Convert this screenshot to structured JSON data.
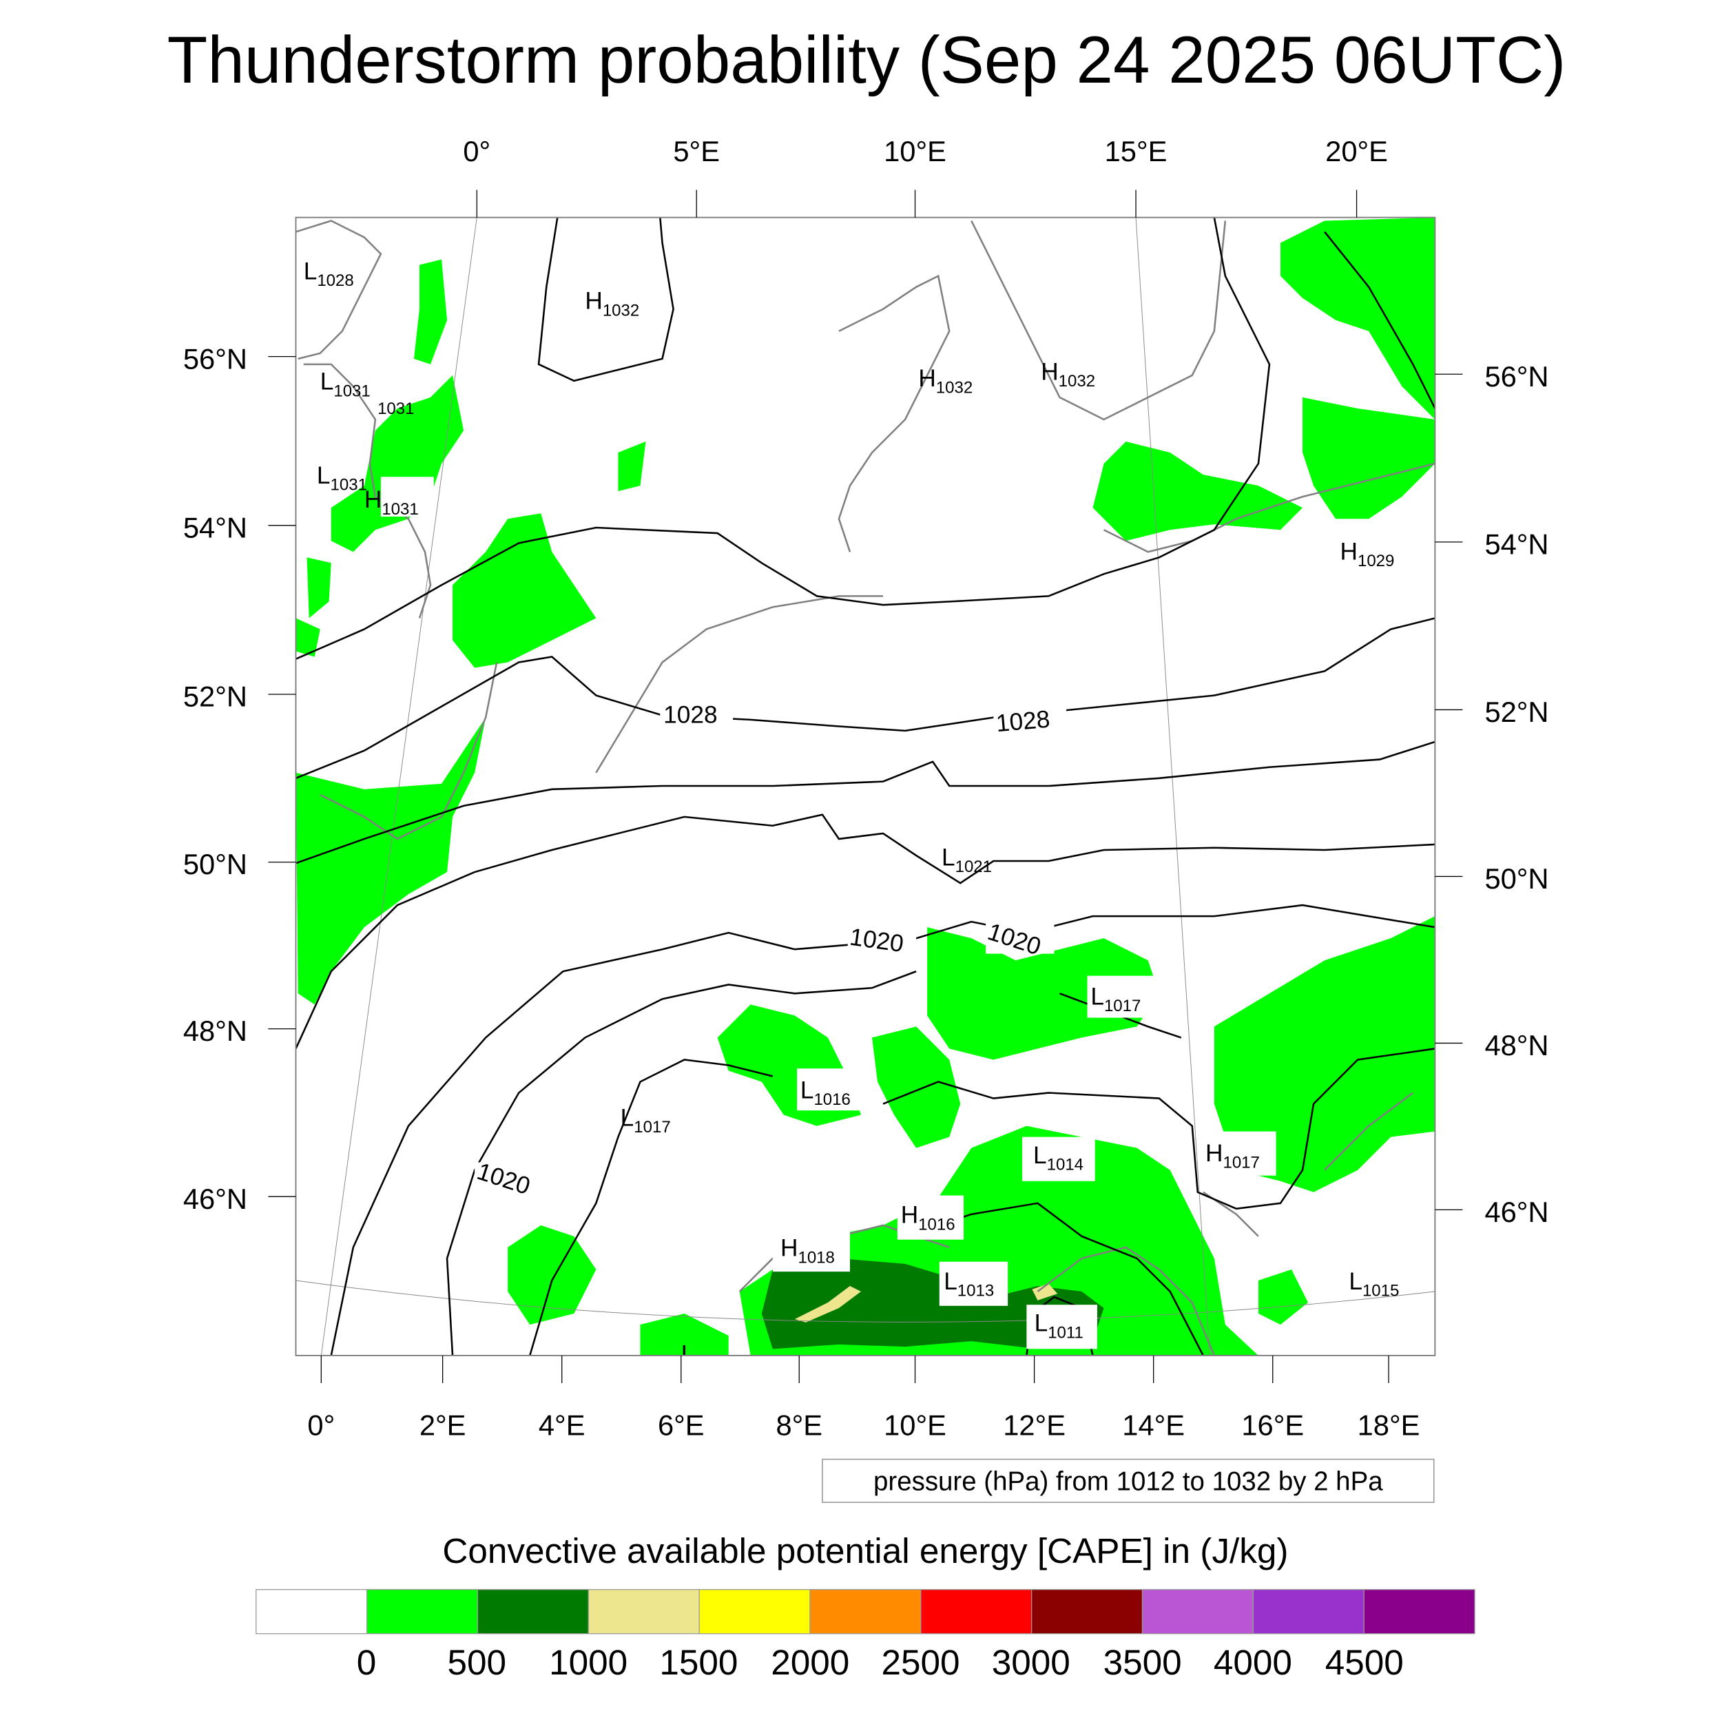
{
  "title": "Thunderstorm probability (Sep 24 2025 06UTC)",
  "axes": {
    "top_lon": [
      "0°",
      "5°E",
      "10°E",
      "15°E",
      "20°E"
    ],
    "bottom_lon": [
      "0°",
      "2°E",
      "4°E",
      "6°E",
      "8°E",
      "10°E",
      "12°E",
      "14°E",
      "16°E",
      "18°E"
    ],
    "left_lat": [
      "56°N",
      "54°N",
      "52°N",
      "50°N",
      "48°N",
      "46°N"
    ],
    "right_lat": [
      "56°N",
      "54°N",
      "52°N",
      "50°N",
      "48°N",
      "46°N"
    ]
  },
  "pressure_centers": [
    {
      "type": "L",
      "value": "1028"
    },
    {
      "type": "L",
      "value": "1031"
    },
    {
      "type": "",
      "value": "1031"
    },
    {
      "type": "L",
      "value": "1031"
    },
    {
      "type": "H",
      "value": "1031"
    },
    {
      "type": "H",
      "value": "1032"
    },
    {
      "type": "H",
      "value": "1032"
    },
    {
      "type": "H",
      "value": "1032"
    },
    {
      "type": "H",
      "value": "1029"
    },
    {
      "type": "L",
      "value": "1021"
    },
    {
      "type": "L",
      "value": "1017"
    },
    {
      "type": "L",
      "value": "1016"
    },
    {
      "type": "L",
      "value": "1017"
    },
    {
      "type": "L",
      "value": "1014"
    },
    {
      "type": "H",
      "value": "1017"
    },
    {
      "type": "H",
      "value": "1016"
    },
    {
      "type": "H",
      "value": "1018"
    },
    {
      "type": "L",
      "value": "1013"
    },
    {
      "type": "L",
      "value": "1011"
    },
    {
      "type": "L",
      "value": "1015"
    },
    {
      "type": "L",
      "value": "1014"
    }
  ],
  "contour_labels": [
    "1028",
    "1028",
    "1020",
    "1020",
    "1020"
  ],
  "contour_info": "pressure (hPa) from 1012 to 1032 by 2 hPa",
  "colorbar": {
    "title": "Convective available potential energy [CAPE] in (J/kg)",
    "colors": [
      "#ffffff",
      "#00ff00",
      "#007a00",
      "#eee58f",
      "#ffff00",
      "#ff8c00",
      "#ff0000",
      "#8b0000",
      "#ba55d3",
      "#9932cc",
      "#8b008b"
    ],
    "labels": [
      "0",
      "500",
      "1000",
      "1500",
      "2000",
      "2500",
      "3000",
      "3500",
      "4000",
      "4500"
    ]
  }
}
